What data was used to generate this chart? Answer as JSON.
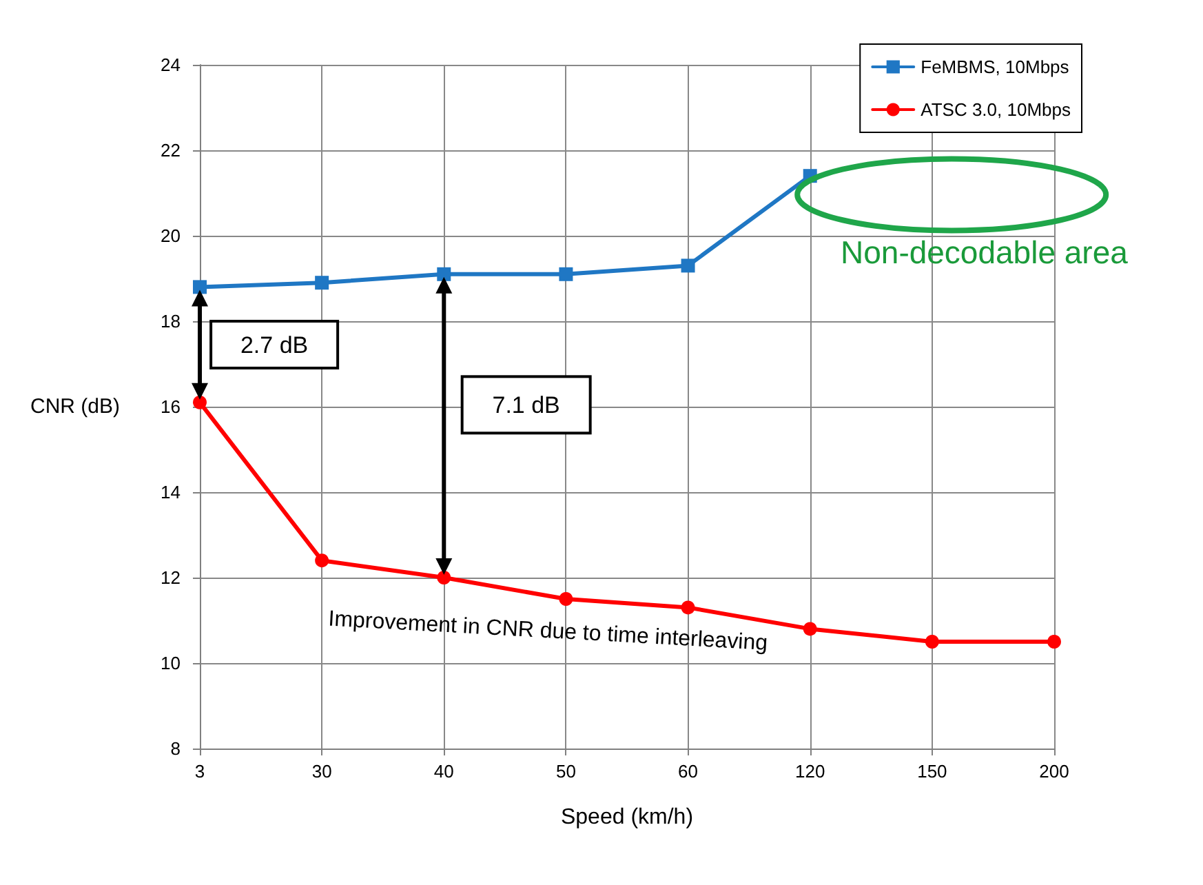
{
  "chart_data": {
    "type": "line",
    "xlabel": "Speed (km/h)",
    "ylabel": "CNR (dB)",
    "categories": [
      "3",
      "30",
      "40",
      "50",
      "60",
      "120",
      "150",
      "200"
    ],
    "series": [
      {
        "name": "FeMBMS, 10Mbps",
        "color": "#1f77c4",
        "marker": "square",
        "values": [
          18.8,
          18.9,
          19.1,
          19.1,
          19.3,
          21.4,
          null,
          null
        ]
      },
      {
        "name": "ATSC 3.0, 10Mbps",
        "color": "#ff0000",
        "marker": "circle",
        "values": [
          16.1,
          12.4,
          12.0,
          11.5,
          11.3,
          10.8,
          10.5,
          10.5
        ]
      }
    ],
    "ylim": [
      8,
      24
    ],
    "yticks": [
      8,
      10,
      12,
      14,
      16,
      18,
      20,
      22,
      24
    ],
    "grid": true,
    "legend": "top right",
    "line_style": "solid",
    "annotations": [
      "2.7 dB",
      "7.1 dB",
      "Non-decodable area",
      "Improvement in CNR due to time interleaving"
    ]
  }
}
